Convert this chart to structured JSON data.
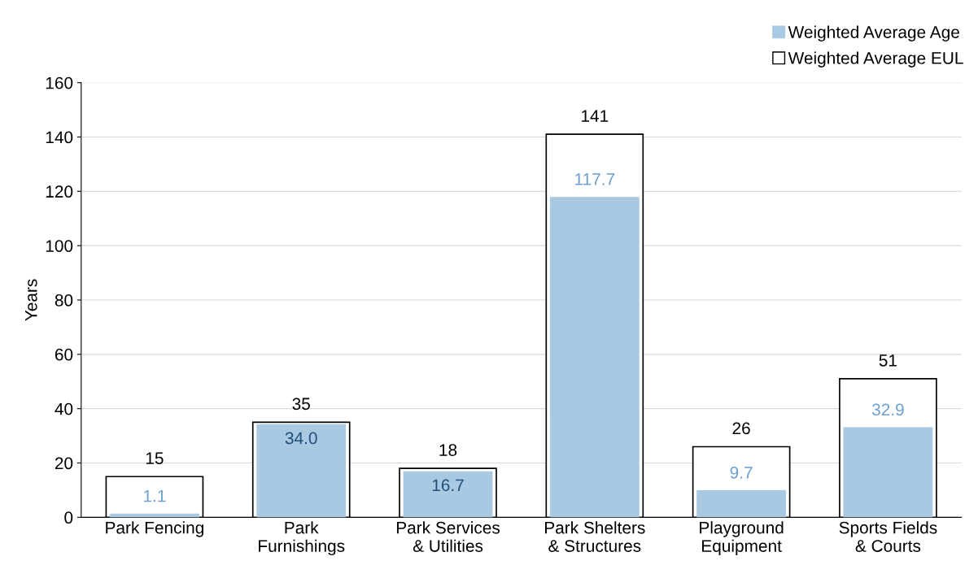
{
  "chart_data": {
    "type": "bar",
    "ylabel": "Years",
    "categories": [
      "Park Fencing",
      "Park\nFurnishings",
      "Park Services\n& Utilities",
      "Park Shelters\n& Structures",
      "Playground\nEquipment",
      "Sports Fields\n& Courts"
    ],
    "series": [
      {
        "name": "Weighted Average Age",
        "color": "#a9c9e3",
        "values": [
          1.1,
          34.0,
          16.7,
          117.7,
          9.7,
          32.9
        ],
        "value_labels": [
          "1.1",
          "34.0",
          "16.7",
          "117.7",
          "9.7",
          "32.9"
        ]
      },
      {
        "name": "Weighted Average EUL",
        "color": "#ffffff",
        "values": [
          15,
          35,
          18,
          141,
          26,
          51
        ]
      }
    ],
    "data_labels": true,
    "ylim": [
      0,
      160
    ],
    "yticks": [
      0,
      20,
      40,
      60,
      80,
      100,
      120,
      140,
      160
    ],
    "grid": "y",
    "legend": "top right"
  }
}
